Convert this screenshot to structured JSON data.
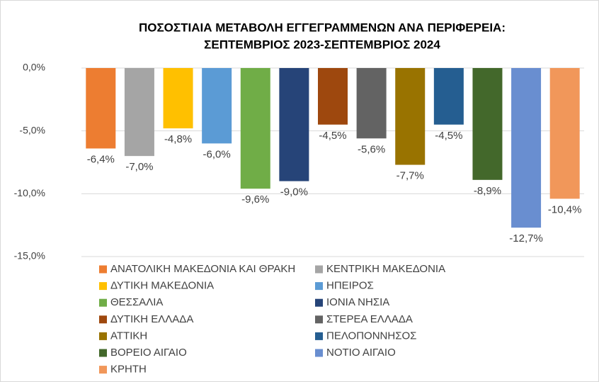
{
  "chart_data": {
    "type": "bar",
    "title": [
      "ΠΟΣΟΣΤΙΑΙΑ ΜΕΤΑΒΟΛΗ ΕΓΓΕΓΡΑΜΜΕΝΩΝ ΑΝΑ ΠΕΡΙΦΕΡΕΙΑ:",
      "ΣΕΠΤΕΜΒΡΙΟΣ 2023-ΣΕΠΤΕΜΒΡΙΟΣ 2024"
    ],
    "ylim": [
      -15,
      0
    ],
    "yticks": [
      {
        "value": 0,
        "label": "0,0%"
      },
      {
        "value": -5,
        "label": "-5,0%"
      },
      {
        "value": -10,
        "label": "-10,0%"
      },
      {
        "value": -15,
        "label": "-15,0%"
      }
    ],
    "grid": true,
    "legend": "bottom",
    "series": [
      {
        "name": "ΑΝΑΤΟΛΙΚΗ ΜΑΚΕΔΟΝΙΑ ΚΑΙ ΘΡΑΚΗ",
        "color": "#ED7D31",
        "values": [
          -6.4
        ],
        "value_labels": [
          "-6,4%"
        ]
      },
      {
        "name": "ΚΕΝΤΡΙΚΗ ΜΑΚΕΔΟΝΙΑ",
        "color": "#A5A5A5",
        "values": [
          -7.0
        ],
        "value_labels": [
          "-7,0%"
        ]
      },
      {
        "name": "ΔΥΤΙΚΗ ΜΑΚΕΔΟΝΙΑ",
        "color": "#FFC000",
        "values": [
          -4.8
        ],
        "value_labels": [
          "-4,8%"
        ]
      },
      {
        "name": "ΗΠΕΙΡΟΣ",
        "color": "#5B9BD5",
        "values": [
          -6.0
        ],
        "value_labels": [
          "-6,0%"
        ]
      },
      {
        "name": "ΘΕΣΣΑΛΙΑ",
        "color": "#70AD47",
        "values": [
          -9.6
        ],
        "value_labels": [
          "-9,6%"
        ]
      },
      {
        "name": "ΙΟΝΙΑ ΝΗΣΙΑ",
        "color": "#264478",
        "values": [
          -9.0
        ],
        "value_labels": [
          "-9,0%"
        ]
      },
      {
        "name": "ΔΥΤΙΚΗ ΕΛΛΑΔΑ",
        "color": "#9E480E",
        "values": [
          -4.5
        ],
        "value_labels": [
          "-4,5%"
        ]
      },
      {
        "name": "ΣΤΕΡΕΑ ΕΛΛΑΔΑ",
        "color": "#636363",
        "values": [
          -5.6
        ],
        "value_labels": [
          "-5,6%"
        ]
      },
      {
        "name": "ΑΤΤΙΚΗ",
        "color": "#997300",
        "values": [
          -7.7
        ],
        "value_labels": [
          "-7,7%"
        ]
      },
      {
        "name": "ΠΕΛΟΠΟΝΝΗΣΟΣ",
        "color": "#255E91",
        "values": [
          -4.5
        ],
        "value_labels": [
          "-4,5%"
        ]
      },
      {
        "name": "ΒΟΡΕΙΟ ΑΙΓΑΙΟ",
        "color": "#43682B",
        "values": [
          -8.9
        ],
        "value_labels": [
          "-8,9%"
        ]
      },
      {
        "name": "ΝΟΤΙΟ ΑΙΓΑΙΟ",
        "color": "#698ED0",
        "values": [
          -12.7
        ],
        "value_labels": [
          "-12,7%"
        ]
      },
      {
        "name": "ΚΡΗΤΗ",
        "color": "#F1975A",
        "values": [
          -10.4
        ],
        "value_labels": [
          "-10,4%"
        ]
      }
    ]
  }
}
